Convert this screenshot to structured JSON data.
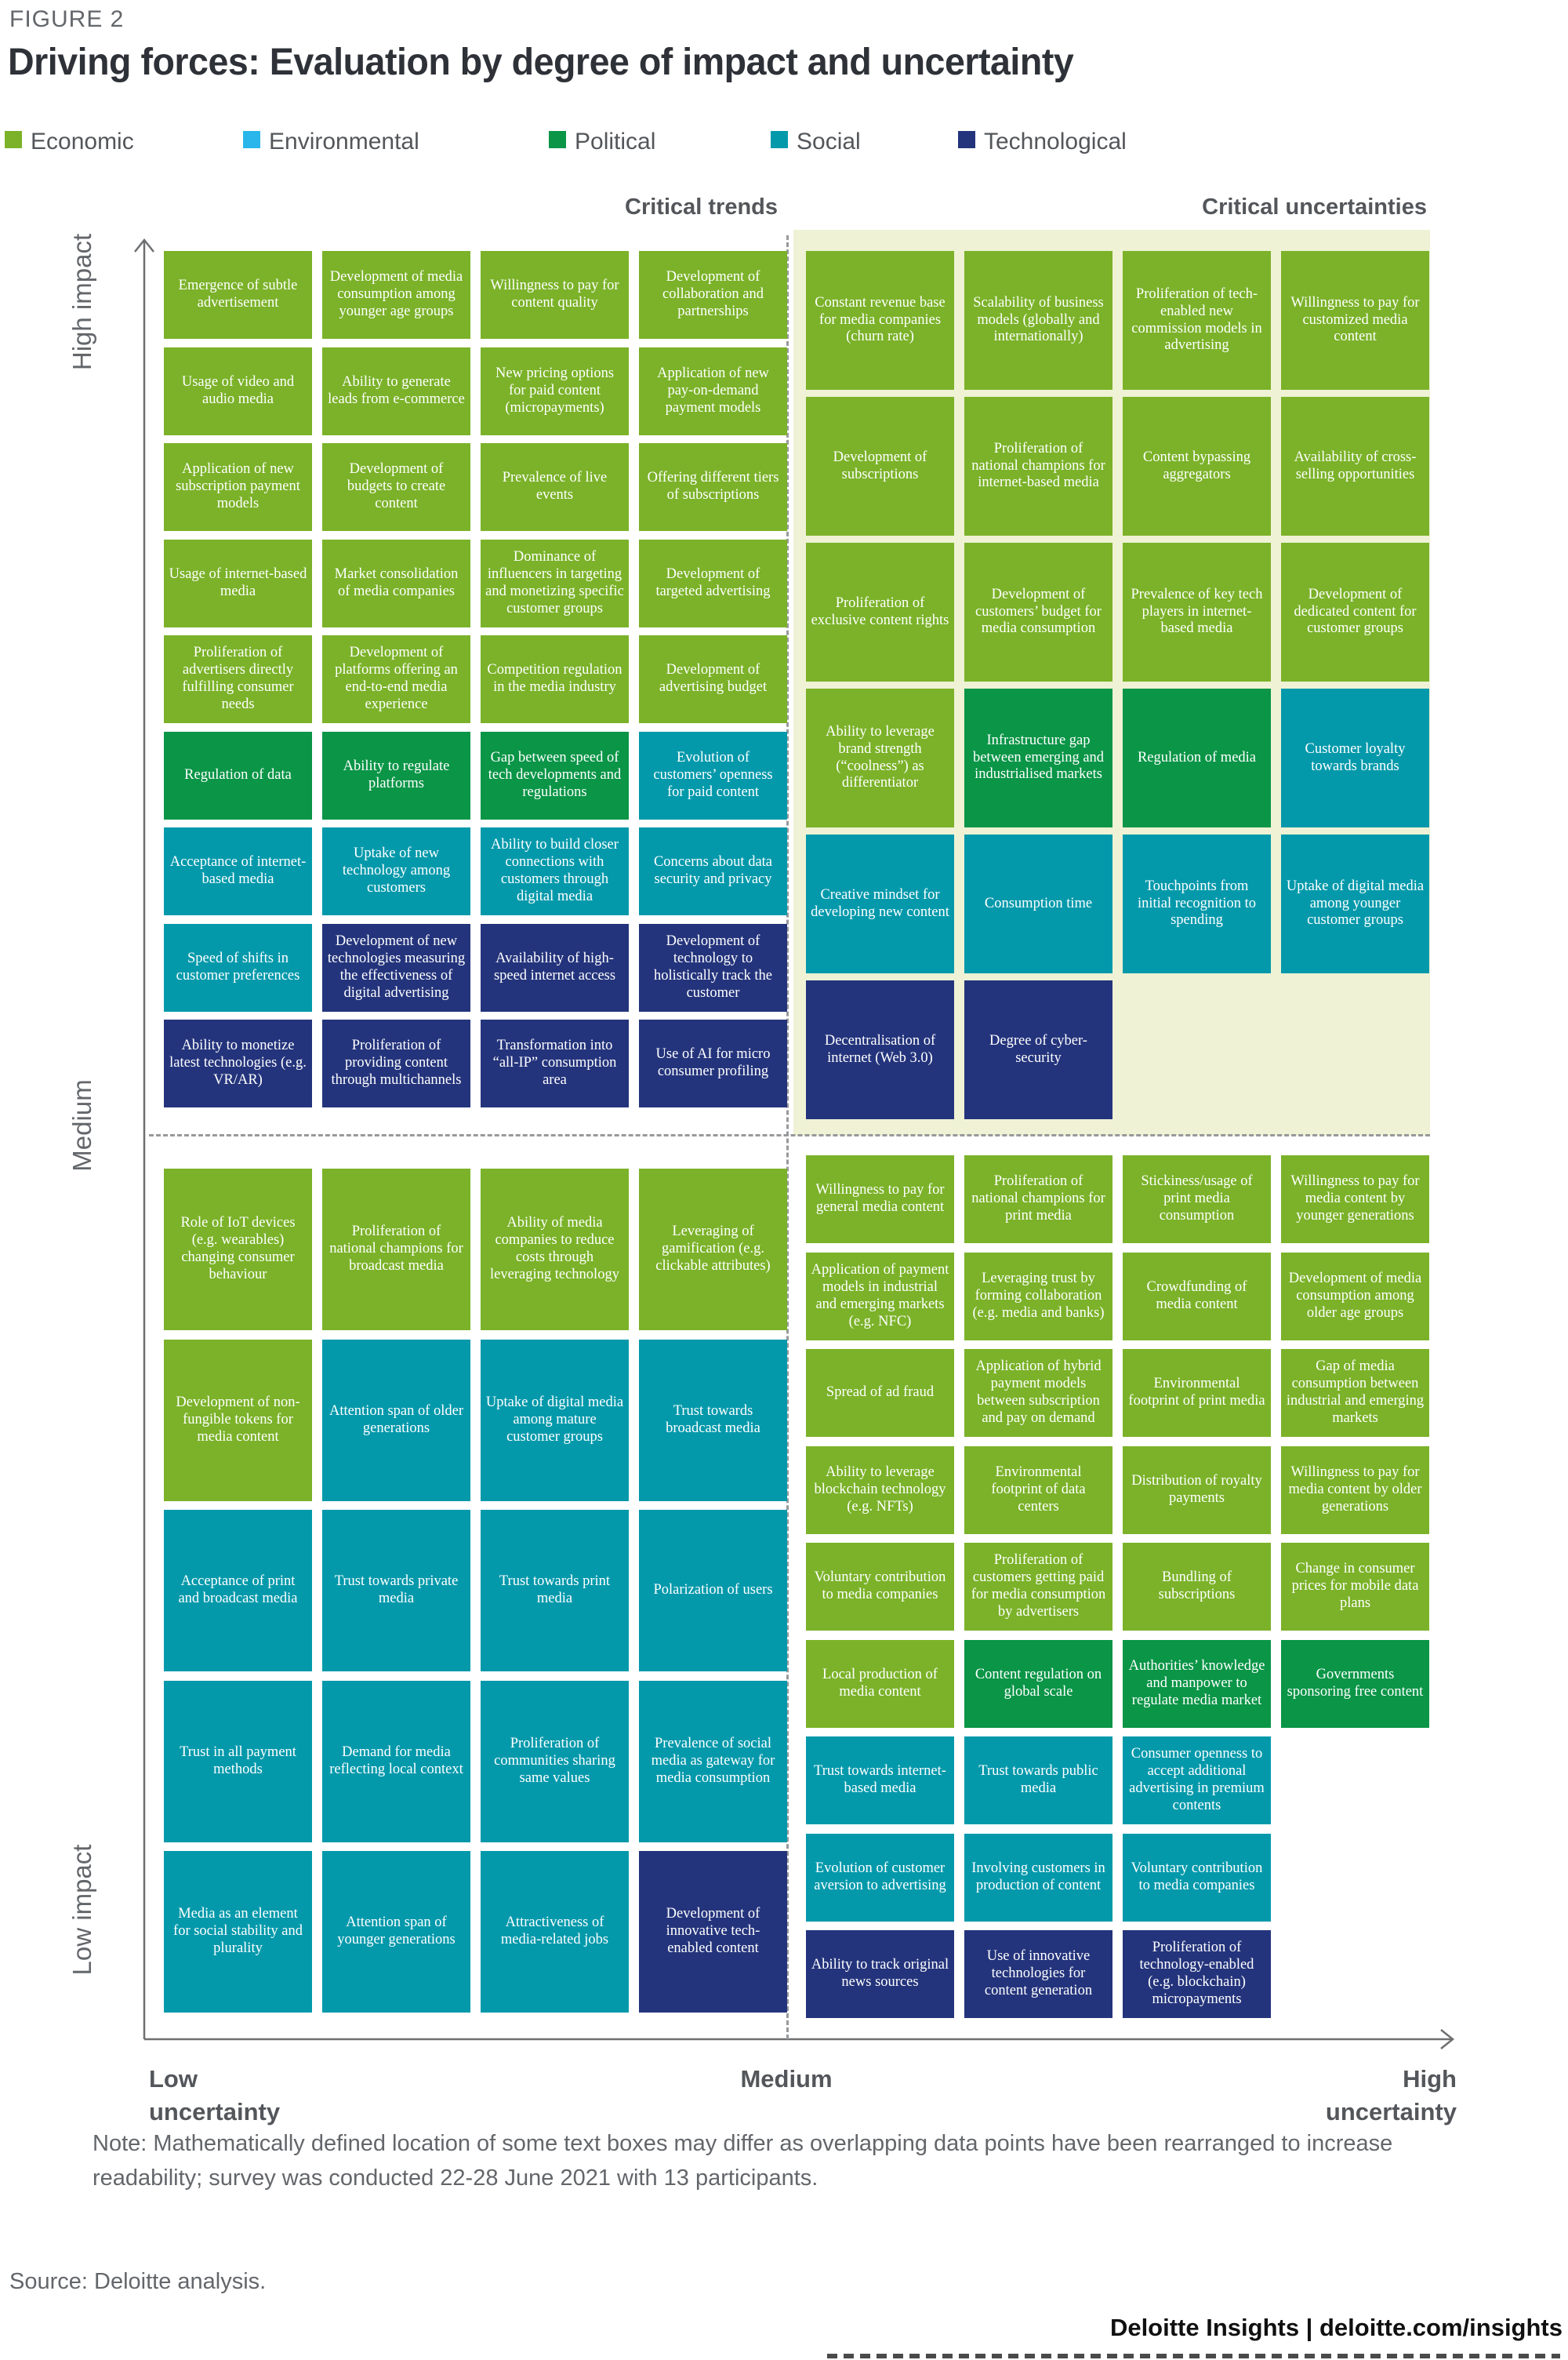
{
  "figure": {
    "eyebrow": "FIGURE 2",
    "title": "Driving forces: Evaluation by degree of impact and uncertainty"
  },
  "legend": [
    {
      "label": "Economic",
      "color": "#7BB229"
    },
    {
      "label": "Environmental",
      "color": "#2AB6EA"
    },
    {
      "label": "Political",
      "color": "#0A9547"
    },
    {
      "label": "Social",
      "color": "#0399AB"
    },
    {
      "label": "Technological",
      "color": "#24347C"
    }
  ],
  "categories": {
    "economic": "#7BB229",
    "environmental": "#2AB6EA",
    "political": "#0A9547",
    "social": "#0399AB",
    "technological": "#24347C"
  },
  "section_headers": {
    "trends": "Critical trends",
    "uncertainties": "Critical uncertainties"
  },
  "axes": {
    "y_top": "High impact",
    "y_mid": "Medium",
    "y_bottom": "Low impact",
    "x_left": "Low\nuncertainty",
    "x_mid": "Medium",
    "x_right": "High\nuncertainty"
  },
  "note": "Note: Mathematically defined location of some text boxes may differ as overlapping data points have been rearranged to increase readability; survey was conducted 22-28 June 2021 with 13 participants.",
  "source": "Source: Deloitte analysis.",
  "footer": "Deloitte Insights | deloitte.com/insights",
  "quadrants": {
    "top_left": {
      "rows": [
        [
          {
            "t": "Emergence of subtle advertisement",
            "c": "economic"
          },
          {
            "t": "Development of media consumption among younger age groups",
            "c": "economic"
          },
          {
            "t": "Willingness to pay for content quality",
            "c": "economic"
          },
          {
            "t": "Development of collaboration and partnerships",
            "c": "economic"
          }
        ],
        [
          {
            "t": "Usage of video and audio media",
            "c": "economic"
          },
          {
            "t": "Ability to generate leads from e-commerce",
            "c": "economic"
          },
          {
            "t": "New pricing options for paid content (micropayments)",
            "c": "economic"
          },
          {
            "t": "Application of new pay-on-demand payment models",
            "c": "economic"
          }
        ],
        [
          {
            "t": "Application of new subscription payment models",
            "c": "economic"
          },
          {
            "t": "Development of budgets to create content",
            "c": "economic"
          },
          {
            "t": "Prevalence of live events",
            "c": "economic"
          },
          {
            "t": "Offering different tiers of subscriptions",
            "c": "economic"
          }
        ],
        [
          {
            "t": "Usage of internet-based media",
            "c": "economic"
          },
          {
            "t": "Market consolidation of media companies",
            "c": "economic"
          },
          {
            "t": "Dominance of influencers in targeting and monetizing specific customer groups",
            "c": "economic"
          },
          {
            "t": "Development of targeted advertising",
            "c": "economic"
          }
        ],
        [
          {
            "t": "Proliferation of advertisers directly fulfilling consumer needs",
            "c": "economic"
          },
          {
            "t": "Development of platforms offering an end-to-end media experience",
            "c": "economic"
          },
          {
            "t": "Competition regulation in the media industry",
            "c": "economic"
          },
          {
            "t": "Development of advertising budget",
            "c": "economic"
          }
        ],
        [
          {
            "t": "Regulation of data",
            "c": "political"
          },
          {
            "t": "Ability to regulate platforms",
            "c": "political"
          },
          {
            "t": "Gap between speed of tech developments and regulations",
            "c": "political"
          },
          {
            "t": "Evolution of customers’ openness for paid content",
            "c": "social"
          }
        ],
        [
          {
            "t": "Acceptance of internet-based media",
            "c": "social"
          },
          {
            "t": "Uptake of new technology among customers",
            "c": "social"
          },
          {
            "t": "Ability to build closer connections with customers through digital media",
            "c": "social"
          },
          {
            "t": "Concerns about data security and privacy",
            "c": "social"
          }
        ],
        [
          {
            "t": "Speed of shifts in customer preferences",
            "c": "social"
          },
          {
            "t": "Development of new technologies measuring the effectiveness of digital advertising",
            "c": "technological"
          },
          {
            "t": "Availability of high-speed internet access",
            "c": "technological"
          },
          {
            "t": "Development of technology to holistically track the customer",
            "c": "technological"
          }
        ],
        [
          {
            "t": "Ability to monetize latest technologies (e.g. VR/AR)",
            "c": "technological"
          },
          {
            "t": "Proliferation of providing content through multichannels",
            "c": "technological"
          },
          {
            "t": "Transformation into “all-IP” consumption area",
            "c": "technological"
          },
          {
            "t": "Use of AI for micro consumer profiling",
            "c": "technological"
          }
        ]
      ]
    },
    "top_right": {
      "rows": [
        [
          {
            "t": "Constant revenue base for media companies (churn rate)",
            "c": "economic"
          },
          {
            "t": "Scalability of business models (globally and internationally)",
            "c": "economic"
          },
          {
            "t": "Proliferation of tech-enabled new commission models in advertising",
            "c": "economic"
          },
          {
            "t": "Willingness to pay for customized media content",
            "c": "economic"
          }
        ],
        [
          {
            "t": "Development of subscriptions",
            "c": "economic"
          },
          {
            "t": "Proliferation of national champions for internet-based media",
            "c": "economic"
          },
          {
            "t": "Content bypassing aggregators",
            "c": "economic"
          },
          {
            "t": "Availability of cross-selling opportunities",
            "c": "economic"
          }
        ],
        [
          {
            "t": "Proliferation of exclusive content rights",
            "c": "economic"
          },
          {
            "t": "Development of customers’ budget for media consumption",
            "c": "economic"
          },
          {
            "t": "Prevalence of key tech players in internet-based media",
            "c": "economic"
          },
          {
            "t": "Development of dedicated content for customer groups",
            "c": "economic"
          }
        ],
        [
          {
            "t": "Ability to leverage brand strength (“coolness”) as differentiator",
            "c": "economic"
          },
          {
            "t": "Infrastructure gap between emerging and industrialised markets",
            "c": "political"
          },
          {
            "t": "Regulation of media",
            "c": "political"
          },
          {
            "t": "Customer loyalty towards brands",
            "c": "social"
          }
        ],
        [
          {
            "t": "Creative mindset for developing new content",
            "c": "social"
          },
          {
            "t": "Consumption time",
            "c": "social"
          },
          {
            "t": "Touchpoints from initial recognition to spending",
            "c": "social"
          },
          {
            "t": "Uptake of digital media among younger customer groups",
            "c": "social"
          }
        ],
        [
          {
            "t": "Decentralisation of internet (Web 3.0)",
            "c": "technological"
          },
          {
            "t": "Degree of cyber-security",
            "c": "technological"
          }
        ]
      ]
    },
    "bottom_left": {
      "rows": [
        [
          {
            "t": "Role of IoT devices (e.g. wearables) changing consumer behaviour",
            "c": "economic"
          },
          {
            "t": "Proliferation of national champions for broadcast media",
            "c": "economic"
          },
          {
            "t": "Ability of media companies to reduce costs through leveraging technology",
            "c": "economic"
          },
          {
            "t": "Leveraging of gamification (e.g. clickable attributes)",
            "c": "economic"
          }
        ],
        [
          {
            "t": "Development of non-fungible tokens for media content",
            "c": "economic"
          },
          {
            "t": "Attention span of older generations",
            "c": "social"
          },
          {
            "t": "Uptake of digital media among mature customer groups",
            "c": "social"
          },
          {
            "t": "Trust towards broadcast media",
            "c": "social"
          }
        ],
        [
          {
            "t": "Acceptance of print and broadcast media",
            "c": "social"
          },
          {
            "t": "Trust towards private media",
            "c": "social"
          },
          {
            "t": "Trust towards print media",
            "c": "social"
          },
          {
            "t": "Polarization of users",
            "c": "social"
          }
        ],
        [
          {
            "t": "Trust in all payment methods",
            "c": "social"
          },
          {
            "t": "Demand for media reflecting local context",
            "c": "social"
          },
          {
            "t": "Proliferation of communities sharing same values",
            "c": "social"
          },
          {
            "t": "Prevalence of social media as gateway for media consumption",
            "c": "social"
          }
        ],
        [
          {
            "t": "Media as an element for social stability and plurality",
            "c": "social"
          },
          {
            "t": "Attention span of younger generations",
            "c": "social"
          },
          {
            "t": "Attractiveness of media-related jobs",
            "c": "social"
          },
          {
            "t": "Development of innovative tech-enabled content",
            "c": "technological"
          }
        ]
      ]
    },
    "bottom_right": {
      "rows": [
        [
          {
            "t": "Willingness to pay for general media content",
            "c": "economic"
          },
          {
            "t": "Proliferation of national champions for print media",
            "c": "economic"
          },
          {
            "t": "Stickiness/usage of print media consumption",
            "c": "economic"
          },
          {
            "t": "Willingness to pay for media content by younger generations",
            "c": "economic"
          }
        ],
        [
          {
            "t": "Application of payment models in industrial and emerging markets (e.g. NFC)",
            "c": "economic"
          },
          {
            "t": "Leveraging trust by forming collaboration (e.g. media and banks)",
            "c": "economic"
          },
          {
            "t": "Crowdfunding of media content",
            "c": "economic"
          },
          {
            "t": "Development of media consumption among older age groups",
            "c": "economic"
          }
        ],
        [
          {
            "t": "Spread of ad fraud",
            "c": "economic"
          },
          {
            "t": "Application of hybrid payment models between subscription and pay on demand",
            "c": "economic"
          },
          {
            "t": "Environmental footprint of print media",
            "c": "economic"
          },
          {
            "t": "Gap of media consumption between industrial and emerging markets",
            "c": "economic"
          }
        ],
        [
          {
            "t": "Ability to leverage blockchain technology (e.g. NFTs)",
            "c": "economic"
          },
          {
            "t": "Environmental footprint of data centers",
            "c": "economic"
          },
          {
            "t": "Distribution of royalty payments",
            "c": "economic"
          },
          {
            "t": "Willingness to pay for media content by older generations",
            "c": "economic"
          }
        ],
        [
          {
            "t": "Voluntary contribution to media companies",
            "c": "economic"
          },
          {
            "t": "Proliferation of customers getting paid for media consumption by advertisers",
            "c": "economic"
          },
          {
            "t": "Bundling of subscriptions",
            "c": "economic"
          },
          {
            "t": "Change in consumer prices for mobile data plans",
            "c": "economic"
          }
        ],
        [
          {
            "t": "Local production of media content",
            "c": "economic"
          },
          {
            "t": "Content regulation on global scale",
            "c": "political"
          },
          {
            "t": "Authorities’ knowledge and manpower to regulate media market",
            "c": "political"
          },
          {
            "t": "Governments sponsoring free content",
            "c": "political"
          }
        ],
        [
          {
            "t": "Trust towards internet-based media",
            "c": "social"
          },
          {
            "t": "Trust towards public media",
            "c": "social"
          },
          {
            "t": "Consumer openness to accept additional advertising in premium contents",
            "c": "social"
          }
        ],
        [
          {
            "t": "Evolution of customer aversion to advertising",
            "c": "social"
          },
          {
            "t": "Involving customers in production of content",
            "c": "social"
          },
          {
            "t": "Voluntary contribution to media companies",
            "c": "social"
          }
        ],
        [
          {
            "t": "Ability to track original news sources",
            "c": "technological"
          },
          {
            "t": "Use of innovative technologies for content generation",
            "c": "technological"
          },
          {
            "t": "Proliferation of technology-enabled (e.g. blockchain) micropayments",
            "c": "technological"
          }
        ]
      ]
    }
  }
}
